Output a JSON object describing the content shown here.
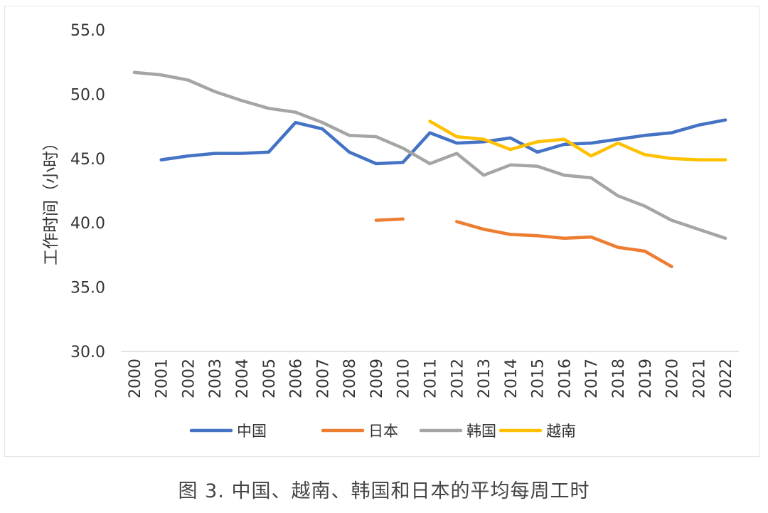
{
  "caption": "图 3. 中国、越南、韩国和日本的平均每周工时",
  "chart_data": {
    "type": "line",
    "title": "",
    "ylabel": "工作时间（小时）",
    "xlabel": "",
    "ylim": [
      30,
      55
    ],
    "yticks": [
      30,
      35,
      40,
      45,
      50,
      55
    ],
    "ytick_labels": [
      "30.0",
      "35.0",
      "40.0",
      "45.0",
      "50.0",
      "55.0"
    ],
    "categories": [
      "2000",
      "2001",
      "2002",
      "2003",
      "2004",
      "2005",
      "2006",
      "2007",
      "2008",
      "2009",
      "2010",
      "2011",
      "2012",
      "2013",
      "2014",
      "2015",
      "2016",
      "2017",
      "2018",
      "2019",
      "2020",
      "2021",
      "2022"
    ],
    "grid": false,
    "legend_position": "bottom",
    "series": [
      {
        "name": "中国",
        "color": "#4472C4",
        "values": [
          null,
          44.9,
          45.2,
          45.4,
          45.4,
          45.5,
          47.8,
          47.3,
          45.5,
          44.6,
          44.7,
          47.0,
          46.2,
          46.3,
          46.6,
          45.5,
          46.1,
          46.2,
          46.5,
          46.8,
          47.0,
          47.6,
          48.0
        ]
      },
      {
        "name": "日本",
        "color": "#ED7D31",
        "values": [
          null,
          null,
          null,
          null,
          null,
          null,
          null,
          null,
          null,
          40.2,
          40.3,
          null,
          40.1,
          39.5,
          39.1,
          39.0,
          38.8,
          38.9,
          38.1,
          37.8,
          36.6,
          null,
          null
        ]
      },
      {
        "name": "韩国",
        "color": "#A5A5A5",
        "values": [
          51.7,
          51.5,
          51.1,
          50.2,
          49.5,
          48.9,
          48.6,
          47.8,
          46.8,
          46.7,
          45.8,
          44.6,
          45.4,
          43.7,
          44.5,
          44.4,
          43.7,
          43.5,
          42.1,
          41.3,
          40.2,
          39.5,
          38.8
        ]
      },
      {
        "name": "越南",
        "color": "#FFC000",
        "values": [
          null,
          null,
          null,
          null,
          null,
          null,
          null,
          null,
          null,
          null,
          null,
          47.9,
          46.7,
          46.5,
          45.7,
          46.3,
          46.5,
          45.2,
          46.2,
          45.3,
          45.0,
          44.9,
          44.9
        ]
      }
    ]
  }
}
